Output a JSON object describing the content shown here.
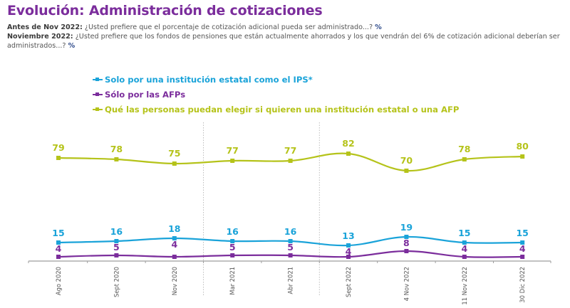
{
  "header": {
    "title": "Evolución: Administración de cotizaciones",
    "q1_label": "Antes de Nov 2022:",
    "q1_text": " ¿Usted prefiere que el porcentaje de cotización adicional pueda ser administrado...? ",
    "q1_pct": "%",
    "q2_label": "Noviembre 2022:",
    "q2_text": " ¿Usted prefiere que los fondos de pensiones que están actualmente ahorrados y los que vendrán del 6% de cotización adicional deberían ser administrados...? ",
    "q2_pct": "%"
  },
  "chart_data": {
    "type": "line",
    "title": "Evolución: Administración de cotizaciones",
    "xlabel": "",
    "ylabel": "%",
    "categories": [
      "Ago 2020",
      "Sept 2020",
      "Nov 2020",
      "Mar 2021",
      "Abr 2021",
      "Sept 2022",
      "4 Nov 2022",
      "11 Nov 2022",
      "30 Dic 2022"
    ],
    "series": [
      {
        "name": "Solo por una institución estatal como el IPS*",
        "color": "#1aa3d9",
        "values": [
          15,
          16,
          18,
          16,
          16,
          13,
          19,
          15,
          15
        ]
      },
      {
        "name": "Sólo por las AFPs",
        "color": "#7b2d9c",
        "values": [
          4,
          5,
          4,
          5,
          5,
          4,
          8,
          4,
          4
        ]
      },
      {
        "name": "Qué las personas puedan elegir si quieren una institución estatal o una AFP",
        "color": "#b5c31a",
        "values": [
          79,
          78,
          75,
          77,
          77,
          82,
          70,
          78,
          80
        ]
      }
    ],
    "separators_after": [
      "Nov 2020",
      "Abr 2021"
    ],
    "legend_position": "top-left",
    "grid": false,
    "data_labels": true,
    "y_axis_visible": false
  }
}
